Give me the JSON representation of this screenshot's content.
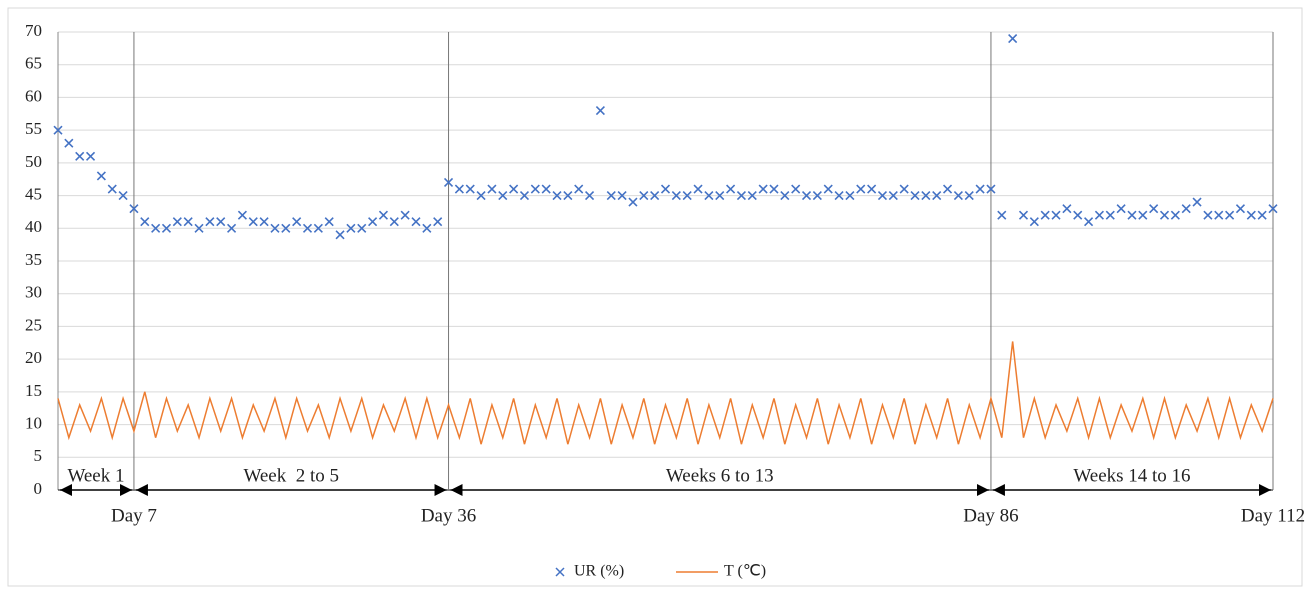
{
  "chart_data": {
    "type": "scatter-line",
    "x": [
      0,
      1,
      2,
      3,
      4,
      5,
      6,
      7,
      8,
      9,
      10,
      11,
      12,
      13,
      14,
      15,
      16,
      17,
      18,
      19,
      20,
      21,
      22,
      23,
      24,
      25,
      26,
      27,
      28,
      29,
      30,
      31,
      32,
      33,
      34,
      35,
      36,
      37,
      38,
      39,
      40,
      41,
      42,
      43,
      44,
      45,
      46,
      47,
      48,
      49,
      50,
      51,
      52,
      53,
      54,
      55,
      56,
      57,
      58,
      59,
      60,
      61,
      62,
      63,
      64,
      65,
      66,
      67,
      68,
      69,
      70,
      71,
      72,
      73,
      74,
      75,
      76,
      77,
      78,
      79,
      80,
      81,
      82,
      83,
      84,
      85,
      86,
      87,
      88,
      89,
      90,
      91,
      92,
      93,
      94,
      95,
      96,
      97,
      98,
      99,
      100,
      101,
      102,
      103,
      104,
      105,
      106,
      107,
      108,
      109,
      110,
      111,
      112
    ],
    "series": [
      {
        "name": "UR (%)",
        "color": "#4472c4",
        "marker": "x",
        "values": [
          55,
          53,
          51,
          51,
          48,
          46,
          45,
          43,
          41,
          40,
          40,
          41,
          41,
          40,
          41,
          41,
          40,
          42,
          41,
          41,
          40,
          40,
          41,
          40,
          40,
          41,
          39,
          40,
          40,
          41,
          42,
          41,
          42,
          41,
          40,
          41,
          47,
          46,
          46,
          45,
          46,
          45,
          46,
          45,
          46,
          46,
          45,
          45,
          46,
          45,
          58,
          45,
          45,
          44,
          45,
          45,
          46,
          45,
          45,
          46,
          45,
          45,
          46,
          45,
          45,
          46,
          46,
          45,
          46,
          45,
          45,
          46,
          45,
          45,
          46,
          46,
          45,
          45,
          46,
          45,
          45,
          45,
          46,
          45,
          45,
          46,
          46,
          42,
          69,
          42,
          41,
          42,
          42,
          43,
          42,
          41,
          42,
          42,
          43,
          42,
          42,
          43,
          42,
          42,
          43,
          44,
          42,
          42,
          42,
          43,
          42,
          42,
          43
        ]
      },
      {
        "name": "T (℃)",
        "color": "#ed7d31",
        "marker": "line",
        "values": [
          14,
          8,
          13,
          9,
          14,
          8,
          14,
          9,
          15,
          8,
          14,
          9,
          13,
          8,
          14,
          9,
          14,
          8,
          13,
          9,
          14,
          8,
          14,
          9,
          13,
          8,
          14,
          9,
          14,
          8,
          13,
          9,
          14,
          8,
          14,
          8,
          13,
          8,
          14,
          7,
          13,
          8,
          14,
          7,
          13,
          8,
          14,
          7,
          13,
          8,
          14,
          7,
          13,
          8,
          14,
          7,
          13,
          8,
          14,
          7,
          13,
          8,
          14,
          7,
          13,
          8,
          14,
          7,
          13,
          8,
          14,
          7,
          13,
          8,
          14,
          7,
          13,
          8,
          14,
          7,
          13,
          8,
          14,
          7,
          13,
          8,
          14,
          8,
          22.7,
          8,
          14,
          8,
          13,
          9,
          14,
          8,
          14,
          8,
          13,
          9,
          14,
          8,
          14,
          8,
          13,
          9,
          14,
          8,
          14,
          8,
          13,
          9,
          14
        ]
      }
    ],
    "xlim": [
      0,
      112
    ],
    "xticks": [
      {
        "value": 7,
        "label": "Day 7"
      },
      {
        "value": 36,
        "label": "Day 36"
      },
      {
        "value": 86,
        "label": "Day 86"
      },
      {
        "value": 112,
        "label": "Day 112"
      }
    ],
    "ylim": [
      0,
      70
    ],
    "yticks": [
      0,
      5,
      10,
      15,
      20,
      25,
      30,
      35,
      40,
      45,
      50,
      55,
      60,
      65,
      70
    ],
    "grid": true,
    "legend": "bottom",
    "periods": [
      {
        "label": "Week 1",
        "start": 0,
        "end": 7
      },
      {
        "label": "Week  2 to 5",
        "start": 7,
        "end": 36
      },
      {
        "label": "Weeks 6 to 13",
        "start": 36,
        "end": 86
      },
      {
        "label": "Weeks 14 to 16",
        "start": 86,
        "end": 112
      }
    ]
  }
}
